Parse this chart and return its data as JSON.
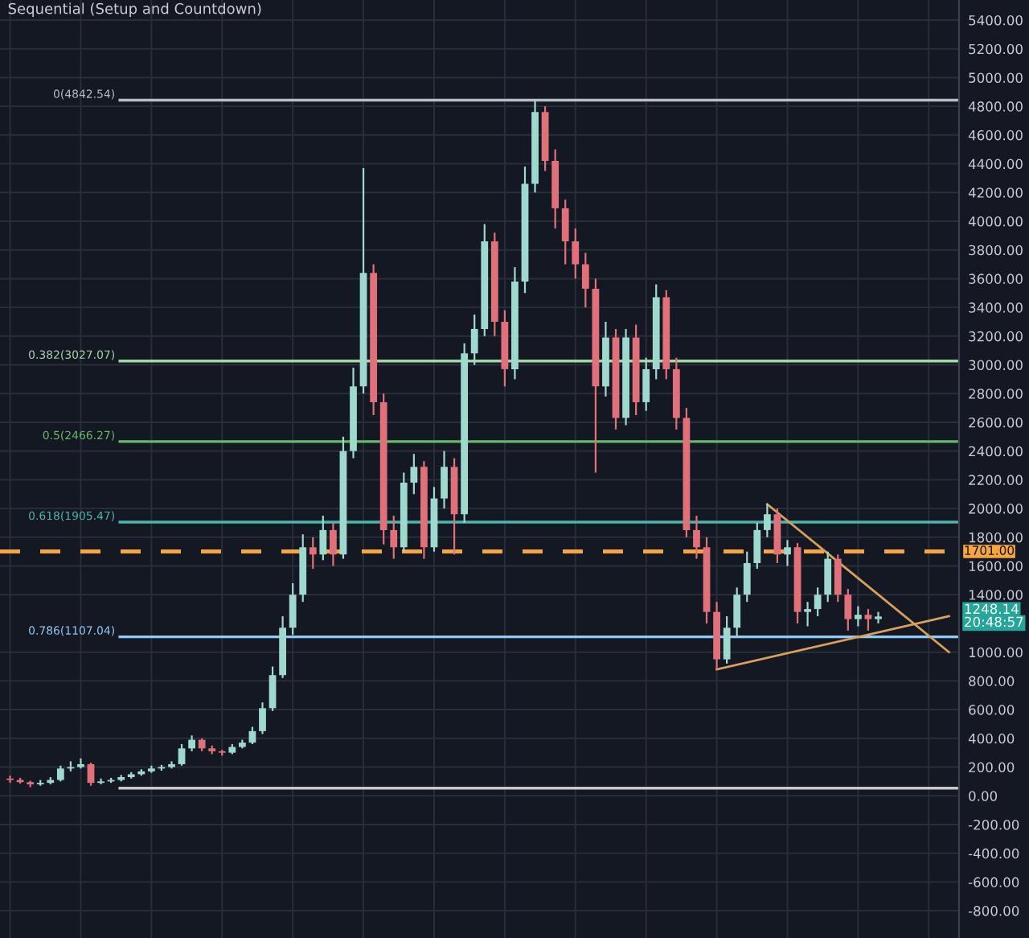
{
  "chart_data": {
    "type": "candlestick",
    "title": "Sequential (Setup and Countdown)",
    "categories": [
      null,
      null,
      null,
      null,
      null,
      null,
      null,
      null,
      null,
      null,
      null,
      null,
      null,
      null,
      null,
      null,
      null,
      null,
      null,
      null,
      null,
      null,
      null,
      null,
      null,
      null,
      null,
      null,
      null,
      null,
      null,
      null,
      null,
      null,
      null,
      null,
      null,
      null,
      null,
      null,
      null,
      null,
      null,
      null,
      null,
      null,
      null,
      null,
      null,
      null,
      null,
      null,
      null,
      null,
      null,
      null,
      null,
      null,
      null,
      null,
      null,
      null,
      null,
      null,
      null,
      null,
      null,
      null,
      null,
      null,
      null,
      null,
      null,
      null,
      null,
      null,
      null,
      null,
      null,
      null,
      null,
      null,
      null,
      null,
      null,
      null,
      null,
      null,
      null,
      null,
      null,
      null,
      null,
      null
    ],
    "ohlc": [
      [
        120,
        140,
        90,
        110
      ],
      [
        110,
        125,
        85,
        95
      ],
      [
        95,
        105,
        60,
        80
      ],
      [
        80,
        110,
        70,
        90
      ],
      [
        90,
        130,
        80,
        110
      ],
      [
        110,
        210,
        100,
        190
      ],
      [
        190,
        240,
        170,
        200
      ],
      [
        200,
        260,
        190,
        220
      ],
      [
        220,
        230,
        70,
        90
      ],
      [
        90,
        120,
        80,
        100
      ],
      [
        100,
        125,
        90,
        110
      ],
      [
        110,
        145,
        100,
        130
      ],
      [
        130,
        165,
        120,
        150
      ],
      [
        150,
        185,
        140,
        170
      ],
      [
        170,
        210,
        160,
        190
      ],
      [
        190,
        215,
        175,
        200
      ],
      [
        200,
        240,
        190,
        220
      ],
      [
        220,
        360,
        210,
        330
      ],
      [
        330,
        420,
        310,
        390
      ],
      [
        390,
        400,
        310,
        330
      ],
      [
        330,
        350,
        290,
        310
      ],
      [
        310,
        320,
        280,
        300
      ],
      [
        300,
        360,
        290,
        340
      ],
      [
        340,
        390,
        330,
        370
      ],
      [
        370,
        480,
        360,
        450
      ],
      [
        450,
        650,
        430,
        610
      ],
      [
        610,
        900,
        590,
        840
      ],
      [
        840,
        1250,
        820,
        1170
      ],
      [
        1170,
        1480,
        1120,
        1400
      ],
      [
        1400,
        1820,
        1350,
        1730
      ],
      [
        1730,
        1800,
        1580,
        1680
      ],
      [
        1680,
        1950,
        1640,
        1850
      ],
      [
        1850,
        1900,
        1600,
        1680
      ],
      [
        1680,
        2500,
        1650,
        2400
      ],
      [
        2400,
        2980,
        2350,
        2850
      ],
      [
        2850,
        4370,
        2800,
        3640
      ],
      [
        3640,
        3700,
        2650,
        2740
      ],
      [
        2740,
        2800,
        1750,
        1850
      ],
      [
        1850,
        1950,
        1650,
        1730
      ],
      [
        1730,
        2250,
        1700,
        2180
      ],
      [
        2180,
        2380,
        2100,
        2290
      ],
      [
        2290,
        2330,
        1650,
        1730
      ],
      [
        1730,
        2150,
        1700,
        2070
      ],
      [
        2070,
        2400,
        2000,
        2290
      ],
      [
        2290,
        2350,
        1680,
        1960
      ],
      [
        1960,
        3150,
        1900,
        3080
      ],
      [
        3080,
        3350,
        3000,
        3250
      ],
      [
        3250,
        3980,
        3200,
        3860
      ],
      [
        3860,
        3920,
        3200,
        3300
      ],
      [
        3300,
        3380,
        2850,
        2970
      ],
      [
        2970,
        3680,
        2900,
        3580
      ],
      [
        3580,
        4380,
        3500,
        4260
      ],
      [
        4260,
        4842.54,
        4200,
        4760
      ],
      [
        4760,
        4800,
        4350,
        4420
      ],
      [
        4420,
        4500,
        3950,
        4090
      ],
      [
        4090,
        4150,
        3700,
        3860
      ],
      [
        3860,
        3950,
        3600,
        3700
      ],
      [
        3700,
        3780,
        3400,
        3530
      ],
      [
        3530,
        3600,
        2250,
        2850
      ],
      [
        2850,
        3300,
        2780,
        3190
      ],
      [
        3190,
        3250,
        2550,
        2630
      ],
      [
        2630,
        3250,
        2580,
        3190
      ],
      [
        3190,
        3280,
        2650,
        2740
      ],
      [
        2740,
        3050,
        2680,
        2970
      ],
      [
        2970,
        3560,
        2900,
        3470
      ],
      [
        3470,
        3520,
        2900,
        2970
      ],
      [
        2970,
        3050,
        2550,
        2630
      ],
      [
        2630,
        2700,
        1800,
        1850
      ],
      [
        1850,
        1950,
        1650,
        1730
      ],
      [
        1730,
        1800,
        1200,
        1280
      ],
      [
        1280,
        1350,
        880,
        950
      ],
      [
        950,
        1250,
        920,
        1170
      ],
      [
        1170,
        1450,
        1100,
        1400
      ],
      [
        1400,
        1700,
        1350,
        1620
      ],
      [
        1620,
        1900,
        1580,
        1850
      ],
      [
        1850,
        2030,
        1800,
        1960
      ],
      [
        1960,
        2000,
        1620,
        1680
      ],
      [
        1680,
        1780,
        1600,
        1730
      ],
      [
        1730,
        1760,
        1200,
        1280
      ],
      [
        1280,
        1350,
        1180,
        1300
      ],
      [
        1300,
        1450,
        1250,
        1400
      ],
      [
        1400,
        1700,
        1350,
        1650
      ],
      [
        1650,
        1680,
        1350,
        1400
      ],
      [
        1400,
        1440,
        1150,
        1230
      ],
      [
        1230,
        1320,
        1180,
        1260
      ],
      [
        1260,
        1300,
        1150,
        1230
      ],
      [
        1230,
        1280,
        1200,
        1248.14
      ],
      null,
      null,
      null,
      null,
      null,
      null,
      null
    ],
    "series": [
      {
        "type": "line",
        "color": "#d9a05b",
        "values": [
          null,
          null,
          null,
          null,
          null,
          null,
          null,
          null,
          null,
          null,
          null,
          null,
          null,
          null,
          null,
          null,
          null,
          null,
          null,
          null,
          null,
          null,
          null,
          null,
          null,
          null,
          null,
          null,
          null,
          null,
          null,
          null,
          null,
          null,
          null,
          null,
          null,
          null,
          null,
          null,
          null,
          null,
          null,
          null,
          null,
          null,
          null,
          null,
          null,
          null,
          null,
          null,
          null,
          null,
          null,
          null,
          null,
          null,
          null,
          null,
          null,
          null,
          null,
          null,
          null,
          null,
          null,
          null,
          null,
          null,
          null,
          null,
          null,
          null,
          null,
          2030,
          null,
          null,
          null,
          null,
          null,
          null,
          null,
          null,
          null,
          null,
          null,
          null,
          null,
          null,
          null,
          null,
          null,
          1000
        ]
      },
      {
        "type": "line",
        "color": "#d9a05b",
        "values": [
          null,
          null,
          null,
          null,
          null,
          null,
          null,
          null,
          null,
          null,
          null,
          null,
          null,
          null,
          null,
          null,
          null,
          null,
          null,
          null,
          null,
          null,
          null,
          null,
          null,
          null,
          null,
          null,
          null,
          null,
          null,
          null,
          null,
          null,
          null,
          null,
          null,
          null,
          null,
          null,
          null,
          null,
          null,
          null,
          null,
          null,
          null,
          null,
          null,
          null,
          null,
          null,
          null,
          null,
          null,
          null,
          null,
          null,
          null,
          null,
          null,
          null,
          null,
          null,
          null,
          null,
          null,
          null,
          null,
          null,
          880,
          null,
          null,
          null,
          null,
          null,
          null,
          null,
          null,
          null,
          null,
          null,
          null,
          null,
          null,
          null,
          null,
          null,
          null,
          null,
          null,
          null,
          null,
          1250
        ]
      }
    ],
    "ylim": [
      -990,
      5540
    ],
    "yticks": [
      {
        "value": -800,
        "label": "-800.00"
      },
      {
        "value": -600,
        "label": "-600.00"
      },
      {
        "value": -400,
        "label": "-400.00"
      },
      {
        "value": -200,
        "label": "-200.00"
      },
      {
        "value": 0,
        "label": "0.00"
      },
      {
        "value": 200,
        "label": "200.00"
      },
      {
        "value": 400,
        "label": "400.00"
      },
      {
        "value": 600,
        "label": "600.00"
      },
      {
        "value": 800,
        "label": "800.00"
      },
      {
        "value": 1000,
        "label": "1000.00"
      },
      {
        "value": 1400,
        "label": "1400.00"
      },
      {
        "value": 1600,
        "label": "1600.00"
      },
      {
        "value": 1800,
        "label": "1800.00"
      },
      {
        "value": 2000,
        "label": "2000.00"
      },
      {
        "value": 2200,
        "label": "2200.00"
      },
      {
        "value": 2400,
        "label": "2400.00"
      },
      {
        "value": 2600,
        "label": "2600.00"
      },
      {
        "value": 2800,
        "label": "2800.00"
      },
      {
        "value": 3000,
        "label": "3000.00"
      },
      {
        "value": 3200,
        "label": "3200.00"
      },
      {
        "value": 3400,
        "label": "3400.00"
      },
      {
        "value": 3600,
        "label": "3600.00"
      },
      {
        "value": 3800,
        "label": "3800.00"
      },
      {
        "value": 4000,
        "label": "4000.00"
      },
      {
        "value": 4200,
        "label": "4200.00"
      },
      {
        "value": 4400,
        "label": "4400.00"
      },
      {
        "value": 4600,
        "label": "4600.00"
      },
      {
        "value": 4800,
        "label": "4800.00"
      },
      {
        "value": 5000,
        "label": "5000.00"
      },
      {
        "value": 5200,
        "label": "5200.00"
      },
      {
        "value": 5400,
        "label": "5400.00"
      }
    ],
    "tick_labels": "y",
    "grid": true,
    "ref_lines": [
      {
        "axis": "y",
        "value": 4842.54,
        "label": "0(4842.54)",
        "color": "#b8bcc6"
      },
      {
        "axis": "y",
        "value": 3027.07,
        "label": "0.382(3027.07)",
        "color": "#a5d6a7"
      },
      {
        "axis": "y",
        "value": 2466.27,
        "label": "0.5(2466.27)",
        "color": "#66bb6a"
      },
      {
        "axis": "y",
        "value": 1905.47,
        "label": "0.618(1905.47)",
        "color": "#4db6ac"
      },
      {
        "axis": "y",
        "value": 1107.04,
        "label": "0.786(1107.04)",
        "color": "#90caf9"
      },
      {
        "axis": "y",
        "value": 53,
        "label": null,
        "color": "#c8c8c8"
      },
      {
        "axis": "y",
        "value": 1701,
        "label": "1701.00",
        "color": "#f7a541",
        "line_style": "dashed"
      }
    ],
    "annotations": [
      "1248.14",
      "20:48:57"
    ]
  }
}
